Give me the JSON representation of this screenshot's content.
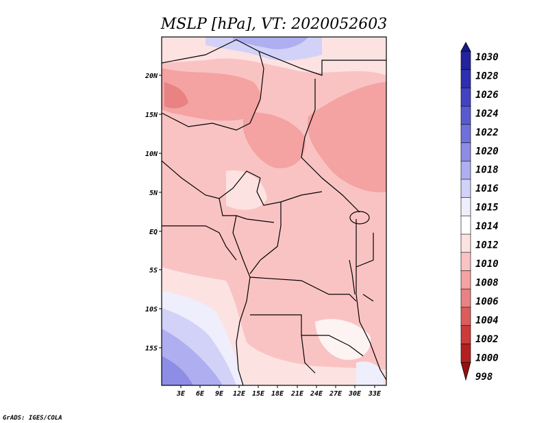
{
  "title": "MSLP [hPa], VT: 2020052603",
  "credit": "GrADS: IGES/COLA",
  "lat_labels": [
    "20N",
    "15N",
    "10N",
    "5N",
    "EQ",
    "5S",
    "10S",
    "15S"
  ],
  "lon_labels": [
    "3E",
    "6E",
    "9E",
    "12E",
    "15E",
    "18E",
    "21E",
    "24E",
    "27E",
    "30E",
    "33E"
  ],
  "colorbar": {
    "labels": [
      "1030",
      "1028",
      "1026",
      "1024",
      "1022",
      "1020",
      "1018",
      "1016",
      "1015",
      "1014",
      "1012",
      "1010",
      "1008",
      "1006",
      "1004",
      "1002",
      "1000",
      "998"
    ],
    "colors": [
      "#1a1a8c",
      "#23239e",
      "#2e2eb0",
      "#4343c2",
      "#5a5ad0",
      "#7070dc",
      "#8d8de6",
      "#aeaef0",
      "#d2d2f8",
      "#eeeefc",
      "#ffffff",
      "#fde2e2",
      "#fac3c3",
      "#f4a2a2",
      "#e98282",
      "#dc5c5c",
      "#cc3a3a",
      "#b42020",
      "#961010"
    ]
  },
  "map": {
    "region": "Central Africa",
    "field": "Mean sea-level pressure (hPa)",
    "lon_range": [
      0,
      34
    ],
    "lat_range": [
      -20,
      25
    ]
  }
}
